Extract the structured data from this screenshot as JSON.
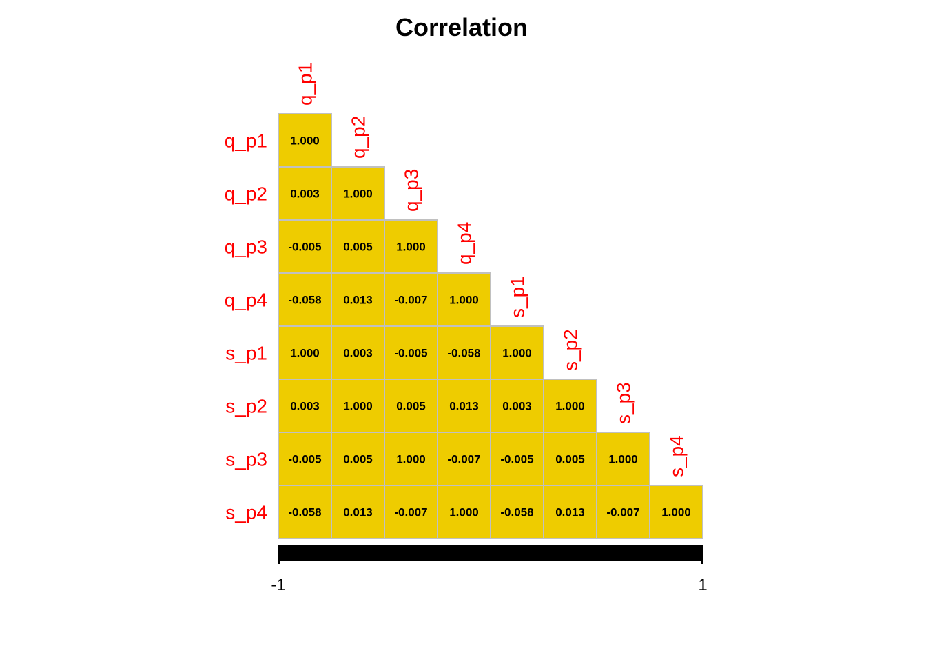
{
  "chart_data": {
    "type": "heatmap",
    "title": "Correlation",
    "variables": [
      "q_p1",
      "q_p2",
      "q_p3",
      "q_p4",
      "s_p1",
      "s_p2",
      "s_p3",
      "s_p4"
    ],
    "layout": "lower-triangle",
    "values": [
      [
        "1.000"
      ],
      [
        "0.003",
        "1.000"
      ],
      [
        "-0.005",
        "0.005",
        "1.000"
      ],
      [
        "-0.058",
        "0.013",
        "-0.007",
        "1.000"
      ],
      [
        "1.000",
        "0.003",
        "-0.005",
        "-0.058",
        "1.000"
      ],
      [
        "0.003",
        "1.000",
        "0.005",
        "0.013",
        "0.003",
        "1.000"
      ],
      [
        "-0.005",
        "0.005",
        "1.000",
        "-0.007",
        "-0.005",
        "0.005",
        "1.000"
      ],
      [
        "-0.058",
        "0.013",
        "-0.007",
        "1.000",
        "-0.058",
        "0.013",
        "-0.007",
        "1.000"
      ]
    ],
    "colorbar": {
      "range": [
        -1,
        1
      ],
      "tick_labels": [
        "-1",
        "1"
      ],
      "color": "#000000"
    },
    "colors": {
      "cell": "#EECC00",
      "grid": "#C0C0C0",
      "label": "#FF0000",
      "text": "#000000"
    }
  }
}
